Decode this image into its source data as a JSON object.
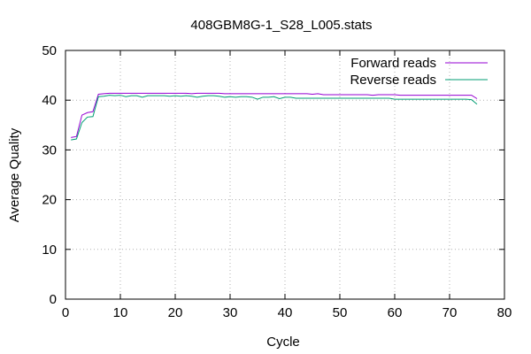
{
  "chart_data": {
    "type": "line",
    "title": "408GBM8G-1_S28_L005.stats",
    "xlabel": "Cycle",
    "ylabel": "Average Quality",
    "xlim": [
      0,
      80
    ],
    "ylim": [
      0,
      50
    ],
    "xticks": [
      "0",
      "10",
      "20",
      "30",
      "40",
      "50",
      "60",
      "70",
      "80"
    ],
    "yticks": [
      "0",
      "10",
      "20",
      "30",
      "40",
      "50"
    ],
    "grid": true,
    "legend_position": "top-right",
    "series": [
      {
        "name": "Forward reads",
        "color": "#9400d3",
        "x": [
          1,
          2,
          3,
          4,
          5,
          6,
          7,
          8,
          9,
          10,
          11,
          12,
          13,
          14,
          15,
          16,
          17,
          18,
          19,
          20,
          21,
          22,
          23,
          24,
          25,
          26,
          27,
          28,
          29,
          30,
          31,
          32,
          33,
          34,
          35,
          36,
          37,
          38,
          39,
          40,
          41,
          42,
          43,
          44,
          45,
          46,
          47,
          48,
          49,
          50,
          51,
          52,
          53,
          54,
          55,
          56,
          57,
          58,
          59,
          60,
          61,
          62,
          63,
          64,
          65,
          66,
          67,
          68,
          69,
          70,
          71,
          72,
          73,
          74,
          75
        ],
        "values": [
          32.5,
          32.7,
          37.0,
          37.5,
          37.7,
          41.2,
          41.3,
          41.4,
          41.4,
          41.4,
          41.4,
          41.4,
          41.4,
          41.4,
          41.4,
          41.4,
          41.4,
          41.4,
          41.4,
          41.4,
          41.4,
          41.4,
          41.3,
          41.4,
          41.4,
          41.4,
          41.4,
          41.4,
          41.3,
          41.3,
          41.3,
          41.3,
          41.3,
          41.3,
          41.3,
          41.3,
          41.3,
          41.3,
          41.3,
          41.3,
          41.3,
          41.3,
          41.3,
          41.3,
          41.2,
          41.3,
          41.1,
          41.1,
          41.1,
          41.1,
          41.1,
          41.1,
          41.1,
          41.1,
          41.1,
          41.0,
          41.1,
          41.1,
          41.1,
          41.1,
          41.0,
          41.0,
          41.0,
          41.0,
          41.0,
          41.0,
          41.0,
          41.0,
          41.0,
          41.0,
          41.0,
          41.0,
          41.0,
          41.0,
          40.3
        ]
      },
      {
        "name": "Reverse reads",
        "color": "#009e73",
        "x": [
          1,
          2,
          3,
          4,
          5,
          6,
          7,
          8,
          9,
          10,
          11,
          12,
          13,
          14,
          15,
          16,
          17,
          18,
          19,
          20,
          21,
          22,
          23,
          24,
          25,
          26,
          27,
          28,
          29,
          30,
          31,
          32,
          33,
          34,
          35,
          36,
          37,
          38,
          39,
          40,
          41,
          42,
          43,
          44,
          45,
          46,
          47,
          48,
          49,
          50,
          51,
          52,
          53,
          54,
          55,
          56,
          57,
          58,
          59,
          60,
          61,
          62,
          63,
          64,
          65,
          66,
          67,
          68,
          69,
          70,
          71,
          72,
          73,
          74,
          75
        ],
        "values": [
          32.0,
          32.2,
          35.5,
          36.6,
          36.7,
          40.7,
          40.8,
          41.0,
          40.9,
          41.0,
          40.7,
          40.9,
          40.9,
          40.6,
          40.9,
          40.9,
          40.9,
          40.9,
          40.8,
          40.9,
          40.8,
          40.9,
          40.8,
          40.6,
          40.8,
          40.9,
          40.9,
          40.8,
          40.6,
          40.7,
          40.6,
          40.7,
          40.7,
          40.6,
          40.2,
          40.6,
          40.6,
          40.7,
          40.3,
          40.6,
          40.6,
          40.4,
          40.4,
          40.4,
          40.4,
          40.4,
          40.4,
          40.4,
          40.4,
          40.4,
          40.4,
          40.4,
          40.4,
          40.4,
          40.4,
          40.4,
          40.4,
          40.4,
          40.4,
          40.2,
          40.2,
          40.2,
          40.2,
          40.2,
          40.2,
          40.2,
          40.2,
          40.2,
          40.2,
          40.2,
          40.2,
          40.2,
          40.2,
          40.1,
          39.2
        ]
      }
    ]
  }
}
